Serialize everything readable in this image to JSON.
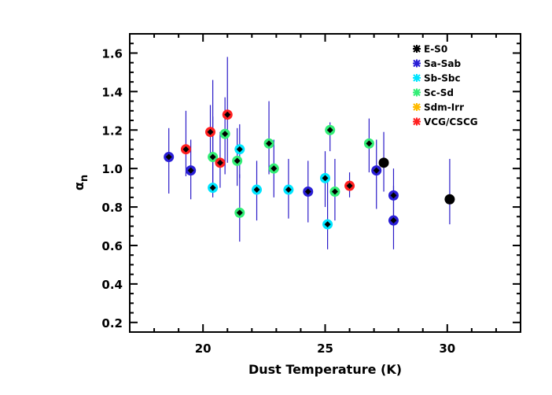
{
  "chart_data": {
    "type": "scatter",
    "xlabel": "Dust Temperature (K)",
    "ylabel_main": "α",
    "ylabel_sub": "n",
    "xlim": [
      17,
      33
    ],
    "ylim": [
      0.15,
      1.7
    ],
    "xticks": [
      20,
      25,
      30
    ],
    "xtick_labels": [
      "20",
      "25",
      "30"
    ],
    "yticks": [
      0.2,
      0.4,
      0.6,
      0.8,
      1.0,
      1.2,
      1.4,
      1.6
    ],
    "ytick_labels": [
      "0.2",
      "0.4",
      "0.6",
      "0.8",
      "1.0",
      "1.2",
      "1.4",
      "1.6"
    ],
    "error_bar_color": "#2b1bc8",
    "legend_position": "top-right",
    "series": [
      {
        "name": "E-S0",
        "color": "#000000",
        "points": [
          {
            "x": 27.4,
            "y": 1.03,
            "lo": 0.88,
            "hi": 1.19
          },
          {
            "x": 30.1,
            "y": 0.84,
            "lo": 0.71,
            "hi": 1.05
          }
        ]
      },
      {
        "name": "Sa-Sab",
        "color": "#2a1fd6",
        "points": [
          {
            "x": 18.6,
            "y": 1.06,
            "lo": 0.87,
            "hi": 1.21
          },
          {
            "x": 19.5,
            "y": 0.99,
            "lo": 0.84,
            "hi": 1.15
          },
          {
            "x": 24.3,
            "y": 0.88,
            "lo": 0.72,
            "hi": 1.04
          },
          {
            "x": 27.1,
            "y": 0.99,
            "lo": 0.79,
            "hi": 1.15
          },
          {
            "x": 27.8,
            "y": 0.86,
            "lo": 0.7,
            "hi": 1.0
          },
          {
            "x": 27.8,
            "y": 0.73,
            "lo": 0.58,
            "hi": 0.91
          }
        ]
      },
      {
        "name": "Sb-Sbc",
        "color": "#00e5ff",
        "points": [
          {
            "x": 20.4,
            "y": 0.9,
            "lo": 0.85,
            "hi": 1.27
          },
          {
            "x": 21.5,
            "y": 1.1,
            "lo": 0.95,
            "hi": 1.23
          },
          {
            "x": 22.2,
            "y": 0.89,
            "lo": 0.73,
            "hi": 1.04
          },
          {
            "x": 23.5,
            "y": 0.89,
            "lo": 0.74,
            "hi": 1.05
          },
          {
            "x": 25.0,
            "y": 0.95,
            "lo": 0.8,
            "hi": 1.09
          },
          {
            "x": 25.1,
            "y": 0.71,
            "lo": 0.58,
            "hi": 0.95
          }
        ]
      },
      {
        "name": "Sc-Sd",
        "color": "#33ee77",
        "points": [
          {
            "x": 20.4,
            "y": 1.06,
            "lo": 0.9,
            "hi": 1.46
          },
          {
            "x": 20.9,
            "y": 1.18,
            "lo": 0.97,
            "hi": 1.37
          },
          {
            "x": 21.4,
            "y": 1.04,
            "lo": 0.91,
            "hi": 1.21
          },
          {
            "x": 21.5,
            "y": 0.77,
            "lo": 0.62,
            "hi": 0.97
          },
          {
            "x": 22.7,
            "y": 1.13,
            "lo": 0.97,
            "hi": 1.35
          },
          {
            "x": 22.9,
            "y": 1.0,
            "lo": 0.85,
            "hi": 1.15
          },
          {
            "x": 25.2,
            "y": 1.2,
            "lo": 1.09,
            "hi": 1.24
          },
          {
            "x": 25.4,
            "y": 0.88,
            "lo": 0.73,
            "hi": 1.05
          },
          {
            "x": 26.8,
            "y": 1.13,
            "lo": 0.98,
            "hi": 1.26
          }
        ]
      },
      {
        "name": "Sdm-Irr",
        "color": "#ffbb00",
        "points": []
      },
      {
        "name": "VCG/CSCG",
        "color": "#ff2020",
        "points": [
          {
            "x": 19.3,
            "y": 1.1,
            "lo": 0.96,
            "hi": 1.3
          },
          {
            "x": 20.3,
            "y": 1.19,
            "lo": 1.04,
            "hi": 1.33
          },
          {
            "x": 20.7,
            "y": 1.03,
            "lo": 0.9,
            "hi": 1.19
          },
          {
            "x": 21.0,
            "y": 1.28,
            "lo": 1.03,
            "hi": 1.58
          },
          {
            "x": 26.0,
            "y": 0.91,
            "lo": 0.85,
            "hi": 0.98
          }
        ]
      }
    ]
  }
}
